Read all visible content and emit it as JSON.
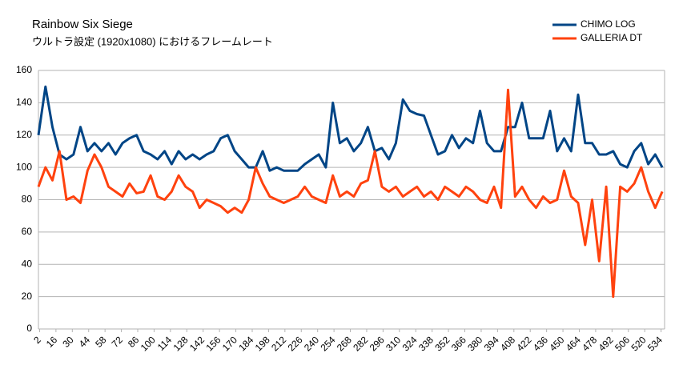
{
  "chart_data": {
    "type": "line",
    "title": "Rainbow Six Siege",
    "subtitle": "ウルトラ設定 (1920x1080) におけるフレームレート",
    "x": [
      1,
      7,
      13,
      19,
      25,
      31,
      37,
      43,
      49,
      55,
      61,
      67,
      73,
      79,
      85,
      91,
      97,
      103,
      109,
      115,
      121,
      127,
      133,
      139,
      145,
      151,
      157,
      163,
      169,
      175,
      181,
      187,
      193,
      199,
      205,
      211,
      217,
      223,
      229,
      235,
      241,
      247,
      253,
      259,
      265,
      271,
      277,
      283,
      289,
      295,
      301,
      307,
      313,
      319,
      325,
      331,
      337,
      343,
      349,
      355,
      361,
      367,
      373,
      379,
      385,
      391,
      397,
      403,
      409,
      415,
      421,
      427,
      433,
      439,
      445,
      451,
      457,
      463,
      469,
      475,
      481,
      487,
      493,
      499,
      505,
      511,
      517,
      523,
      529,
      535
    ],
    "series": [
      {
        "name": "CHIMO LOG",
        "color": "#004586",
        "values": [
          120,
          150,
          125,
          108,
          105,
          108,
          125,
          110,
          115,
          110,
          115,
          108,
          115,
          118,
          120,
          110,
          108,
          105,
          110,
          102,
          110,
          105,
          108,
          105,
          108,
          110,
          118,
          120,
          110,
          105,
          100,
          100,
          110,
          98,
          100,
          98,
          98,
          98,
          102,
          105,
          108,
          100,
          140,
          115,
          118,
          110,
          115,
          125,
          110,
          112,
          105,
          115,
          142,
          135,
          133,
          132,
          120,
          108,
          110,
          120,
          112,
          118,
          115,
          135,
          115,
          110,
          110,
          125,
          125,
          140,
          118,
          118,
          118,
          135,
          110,
          118,
          110,
          145,
          115,
          115,
          108,
          108,
          110,
          102,
          100,
          110,
          115,
          102,
          108,
          100
        ]
      },
      {
        "name": "GALLERIA DT",
        "color": "#ff420e",
        "values": [
          88,
          100,
          92,
          110,
          80,
          82,
          78,
          98,
          108,
          100,
          88,
          85,
          82,
          90,
          84,
          85,
          95,
          82,
          80,
          85,
          95,
          88,
          85,
          75,
          80,
          78,
          76,
          72,
          75,
          72,
          80,
          100,
          90,
          82,
          80,
          78,
          80,
          82,
          88,
          82,
          80,
          78,
          95,
          82,
          85,
          82,
          90,
          92,
          110,
          88,
          85,
          88,
          82,
          85,
          88,
          82,
          85,
          80,
          88,
          85,
          82,
          88,
          85,
          80,
          78,
          88,
          75,
          148,
          82,
          88,
          80,
          75,
          82,
          78,
          80,
          98,
          82,
          78,
          52,
          80,
          42,
          88,
          20,
          88,
          85,
          90,
          100,
          85,
          75,
          85
        ]
      }
    ],
    "xlim": [
      1,
      537
    ],
    "xticks": [
      2,
      16,
      30,
      44,
      58,
      72,
      86,
      100,
      114,
      128,
      142,
      156,
      170,
      184,
      198,
      212,
      226,
      240,
      254,
      268,
      282,
      296,
      310,
      324,
      338,
      352,
      366,
      380,
      394,
      408,
      422,
      436,
      450,
      464,
      478,
      492,
      506,
      520,
      534
    ],
    "ylim": [
      0,
      160
    ],
    "yticks": [
      0,
      20,
      40,
      60,
      80,
      100,
      120,
      140,
      160
    ],
    "grid": true,
    "legend": "top-right"
  }
}
